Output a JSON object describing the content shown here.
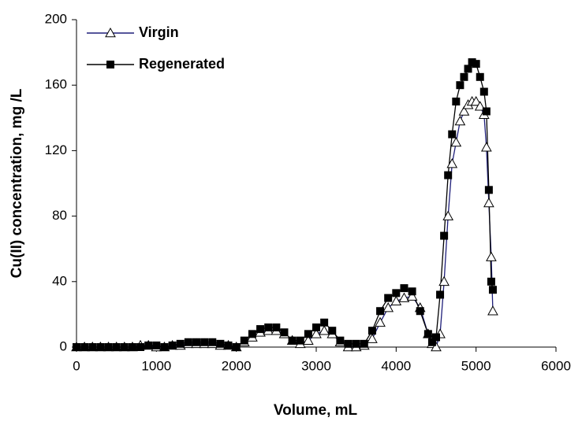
{
  "chart_data": {
    "type": "line",
    "xlabel": "Volume, mL",
    "ylabel": "Cu(II) concentration, mg /L",
    "x": [
      0,
      100,
      200,
      300,
      400,
      500,
      600,
      700,
      800,
      900,
      1000,
      1100,
      1200,
      1300,
      1400,
      1500,
      1600,
      1700,
      1800,
      1900,
      2000,
      2100,
      2200,
      2300,
      2400,
      2500,
      2600,
      2700,
      2800,
      2900,
      3000,
      3100,
      3200,
      3300,
      3400,
      3500,
      3600,
      3700,
      3800,
      3900,
      4000,
      4100,
      4200,
      4300,
      4400,
      4450,
      4500,
      4550,
      4600,
      4650,
      4700,
      4750,
      4800,
      4850,
      4900,
      4950,
      5000,
      5050,
      5100,
      5130,
      5160,
      5190,
      5210
    ],
    "series": [
      {
        "name": "Virgin",
        "color": "#1f1f7a",
        "marker": "triangle",
        "values": [
          0,
          0,
          0,
          0,
          0,
          0,
          0,
          0,
          1,
          1,
          0,
          0,
          1,
          1,
          2,
          2,
          2,
          2,
          1,
          1,
          0,
          3,
          6,
          9,
          10,
          10,
          8,
          4,
          2,
          4,
          8,
          10,
          8,
          3,
          0,
          0,
          1,
          5,
          15,
          24,
          28,
          30,
          31,
          24,
          8,
          2,
          0,
          8,
          40,
          80,
          112,
          125,
          138,
          144,
          148,
          150,
          150,
          147,
          142,
          122,
          88,
          55,
          22
        ]
      },
      {
        "name": "Regenerated",
        "color": "#000000",
        "marker": "square",
        "values": [
          0,
          0,
          0,
          0,
          0,
          0,
          0,
          0,
          0,
          1,
          1,
          0,
          1,
          2,
          3,
          3,
          3,
          3,
          2,
          1,
          0,
          4,
          8,
          11,
          12,
          12,
          9,
          4,
          4,
          8,
          12,
          15,
          10,
          4,
          2,
          2,
          2,
          10,
          22,
          30,
          33,
          36,
          34,
          22,
          8,
          3,
          6,
          32,
          68,
          105,
          130,
          150,
          160,
          165,
          170,
          174,
          173,
          165,
          156,
          144,
          96,
          40,
          35
        ]
      }
    ],
    "xlim": [
      0,
      6000
    ],
    "xticks": [
      0,
      1000,
      2000,
      3000,
      4000,
      5000,
      6000
    ],
    "ylim": [
      0,
      200
    ],
    "yticks": [
      0,
      40,
      80,
      120,
      160,
      200
    ],
    "legend": "upper left"
  }
}
